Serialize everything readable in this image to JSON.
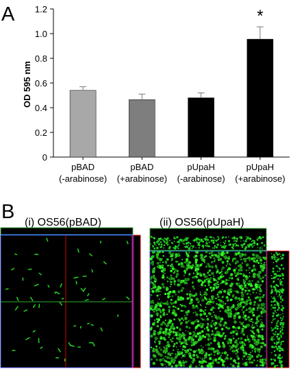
{
  "panel_a": {
    "letter": "A"
  },
  "panel_b": {
    "letter": "B",
    "left_title": "(i) OS56(pBAD)",
    "right_title": "(ii) OS56(pUpaH)"
  },
  "chart_data": {
    "type": "bar",
    "title": "",
    "xlabel": "",
    "ylabel": "OD 595 nm",
    "ylim": [
      0,
      1.2
    ],
    "yticks": [
      "0",
      "0.2",
      "0.4",
      "0.6",
      "0.8",
      "1.0",
      "1.2"
    ],
    "categories": [
      [
        "pBAD",
        "(-arabinose)"
      ],
      [
        "pBAD",
        "(+arabinose)"
      ],
      [
        "pUpaH",
        "(-arabinose)"
      ],
      [
        "pUpaH",
        "(+arabinose)"
      ]
    ],
    "values": [
      0.54,
      0.465,
      0.48,
      0.955
    ],
    "errors": [
      0.03,
      0.045,
      0.04,
      0.1
    ],
    "significance": [
      "",
      "",
      "",
      "*"
    ],
    "bar_colors": [
      "#a8a8a8",
      "#7e7e7e",
      "#000000",
      "#000000"
    ],
    "grid": false,
    "legend": "none"
  },
  "colors": {
    "fluorescence": "#22cc22",
    "image_background": "#000000",
    "crosshair_red": "#d40000",
    "crosshair_green": "#2fae2f",
    "crosshair_blue": "#3b4bd6"
  }
}
